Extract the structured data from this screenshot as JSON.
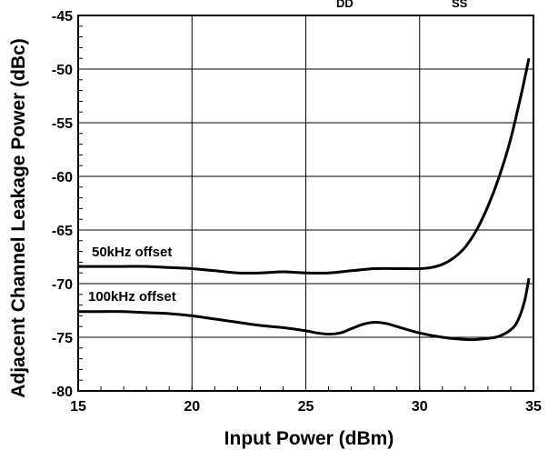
{
  "chart_data": {
    "type": "line",
    "title": "",
    "top_cut_labels": [
      "DD",
      "SS"
    ],
    "xlabel": "Input Power   (dBm)",
    "ylabel": "Adjacent Channel Leakage Power (dBc)",
    "xlim": [
      15,
      35
    ],
    "ylim": [
      -80,
      -45
    ],
    "x_ticks": [
      15,
      20,
      25,
      30,
      35
    ],
    "y_ticks": [
      -45,
      -50,
      -55,
      -60,
      -65,
      -70,
      -75,
      -80
    ],
    "grid": true,
    "series": [
      {
        "name": "50kHz offset",
        "color": "#000000",
        "x": [
          15,
          16,
          17,
          18,
          19,
          20,
          21,
          22,
          23,
          24,
          25,
          26,
          27,
          28,
          29,
          30,
          30.5,
          31,
          31.5,
          32,
          32.5,
          33,
          33.5,
          34,
          34.5,
          34.8
        ],
        "y": [
          -68.4,
          -68.4,
          -68.4,
          -68.4,
          -68.5,
          -68.6,
          -68.8,
          -69.0,
          -69.0,
          -68.9,
          -69.0,
          -69.0,
          -68.8,
          -68.6,
          -68.6,
          -68.6,
          -68.5,
          -68.2,
          -67.6,
          -66.6,
          -65.0,
          -62.8,
          -60.0,
          -56.5,
          -52.0,
          -49.0
        ]
      },
      {
        "name": "100kHz offset",
        "color": "#000000",
        "x": [
          15,
          16,
          17,
          18,
          19,
          20,
          21,
          22,
          23,
          24,
          25,
          25.5,
          26,
          26.5,
          27,
          27.5,
          28,
          28.5,
          29,
          30,
          31,
          32,
          32.5,
          33,
          33.5,
          34,
          34.3,
          34.6,
          34.8
        ],
        "y": [
          -72.6,
          -72.6,
          -72.6,
          -72.7,
          -72.8,
          -73.0,
          -73.3,
          -73.6,
          -73.9,
          -74.1,
          -74.4,
          -74.6,
          -74.7,
          -74.6,
          -74.2,
          -73.8,
          -73.6,
          -73.7,
          -74.0,
          -74.6,
          -75.0,
          -75.2,
          -75.2,
          -75.1,
          -74.9,
          -74.3,
          -73.5,
          -71.7,
          -69.5
        ]
      }
    ]
  }
}
